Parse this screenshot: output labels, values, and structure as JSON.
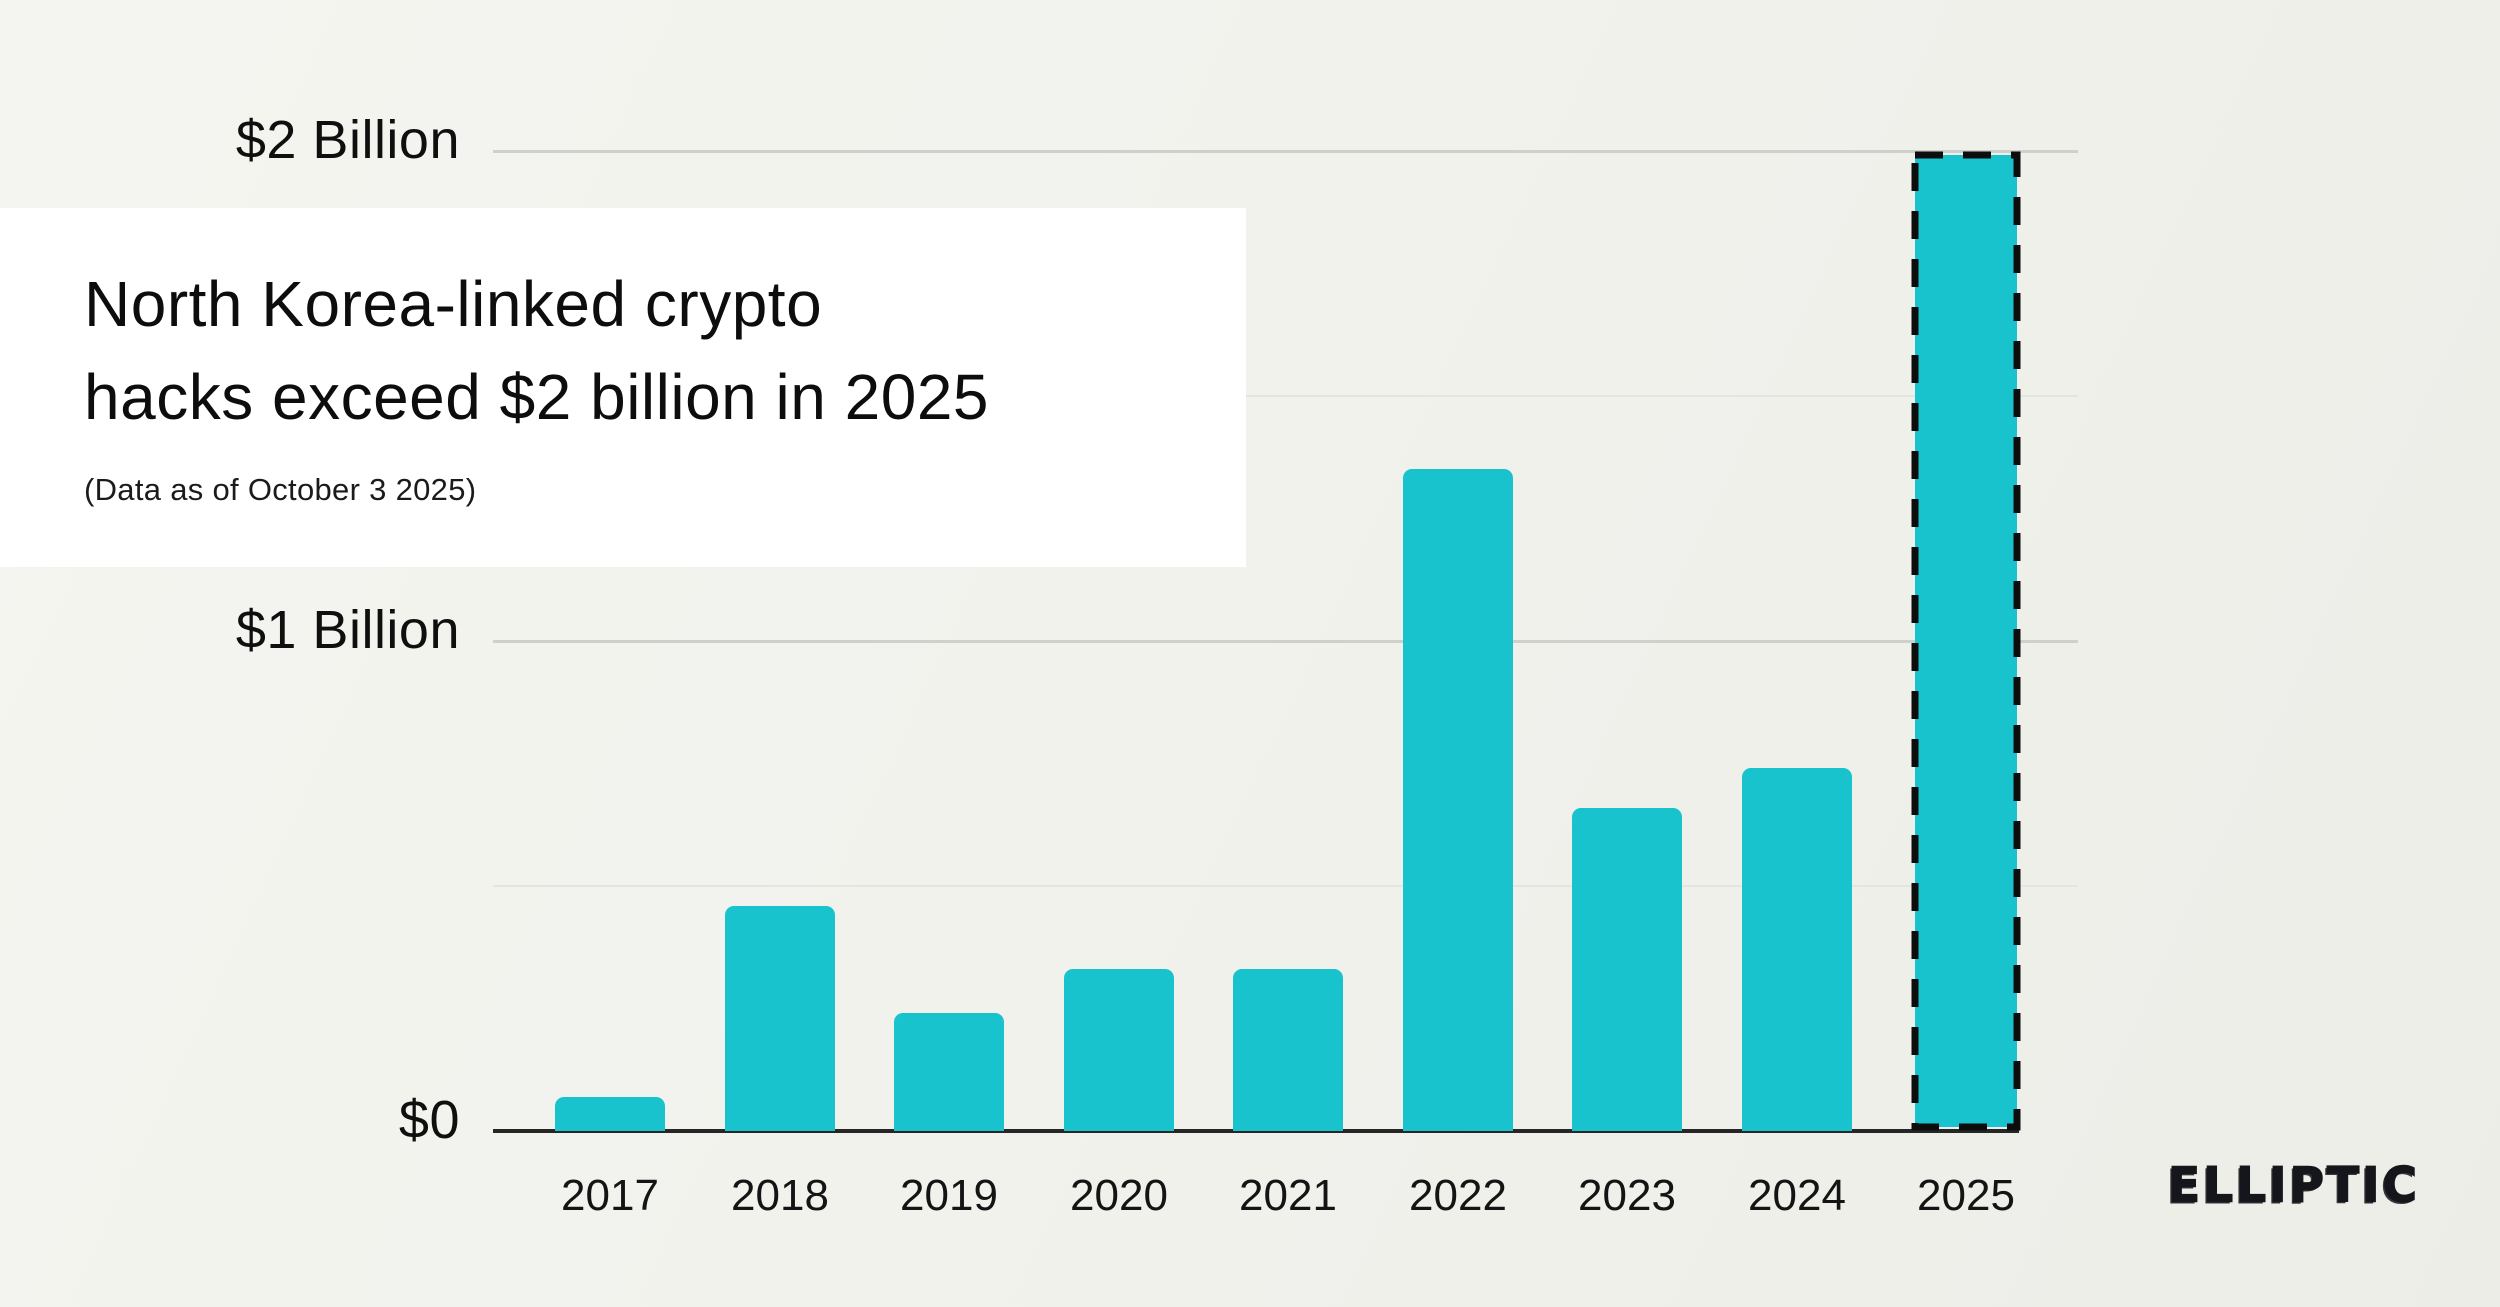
{
  "header": {
    "title_line1": "North Korea-linked crypto",
    "title_line2": "hacks exceed $2 billion in 2025",
    "subtitle": "(Data as of October 3 2025)"
  },
  "branding": {
    "logo_text": "ELLIPTIC"
  },
  "colors": {
    "background": "#F1F1EC",
    "card": "#FFFFFF",
    "bar": "#18C3CD",
    "highlight_border": "#0D0D0D",
    "axis": "#262626",
    "gridline_major": "#CFCFCB",
    "gridline_minor": "#E4E4E0",
    "text": "#111111"
  },
  "chart_data": {
    "type": "bar",
    "title": "North Korea-linked crypto hacks exceed $2 billion in 2025",
    "subtitle": "(Data as of October 3 2025)",
    "unit": "USD billions",
    "categories": [
      "2017",
      "2018",
      "2019",
      "2020",
      "2021",
      "2022",
      "2023",
      "2024",
      "2025"
    ],
    "values": [
      0.07,
      0.46,
      0.24,
      0.33,
      0.33,
      1.35,
      0.66,
      0.74,
      2.0
    ],
    "highlight_index": 8,
    "highlight_style": "black dashed border on 2025 bar",
    "xlabel": "",
    "ylabel": "",
    "ylim": [
      0,
      2.1
    ],
    "yticks": [
      {
        "value": 0,
        "label": "$0"
      },
      {
        "value": 1,
        "label": "$1 Billion"
      },
      {
        "value": 2,
        "label": "$2 Billion"
      }
    ],
    "minor_gridlines": [
      0.5,
      1.5
    ],
    "grid": "horizontal lines at every $0.5B",
    "legend": "none",
    "bar_color": "#18C3CD"
  }
}
